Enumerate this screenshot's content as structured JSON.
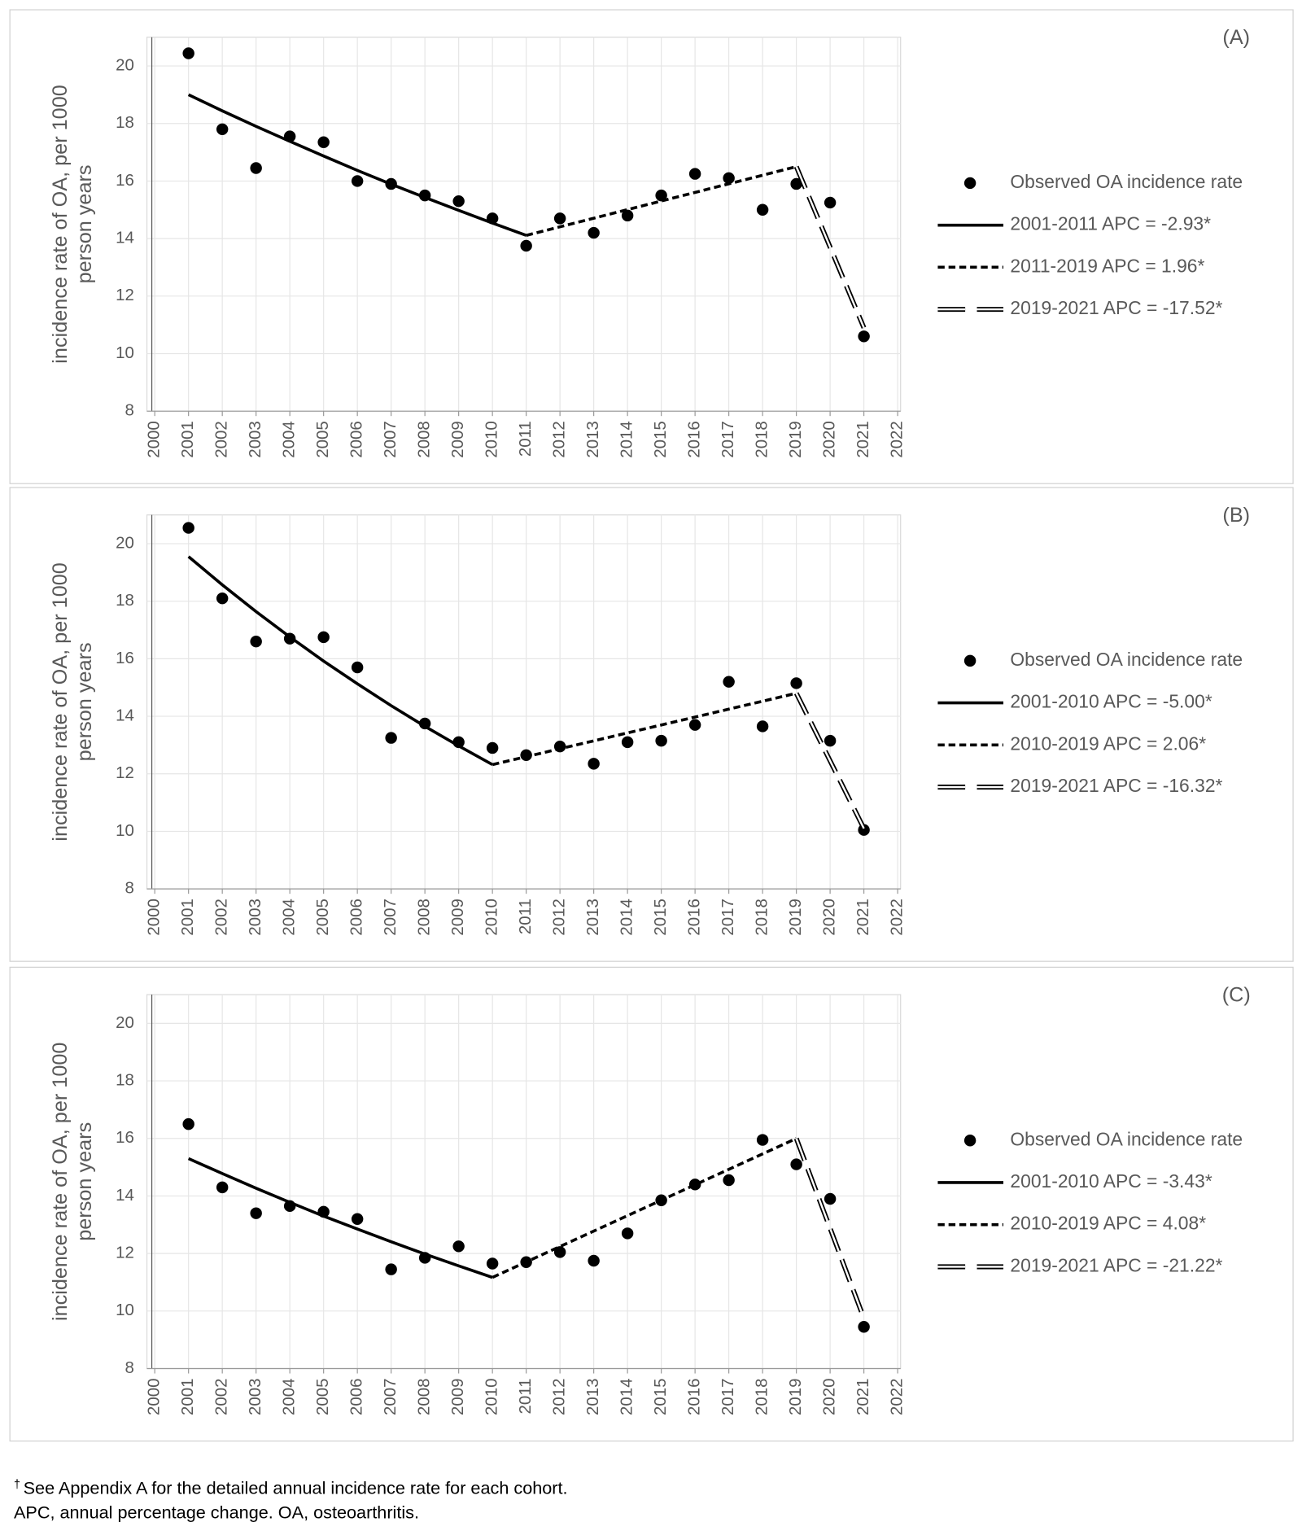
{
  "chart_data": [
    {
      "type": "scatter",
      "panel_label": "(A)",
      "y_label": [
        "incidence rate of OA, per 1000",
        "person years"
      ],
      "xlim": [
        2000,
        2022
      ],
      "xticks": [
        2000,
        2001,
        2002,
        2003,
        2004,
        2005,
        2006,
        2007,
        2008,
        2009,
        2010,
        2011,
        2012,
        2013,
        2014,
        2015,
        2016,
        2017,
        2018,
        2019,
        2020,
        2021,
        2022
      ],
      "ylim": [
        8,
        21
      ],
      "yticks": [
        8,
        10,
        12,
        14,
        16,
        18,
        20
      ],
      "grid": true,
      "series": [
        {
          "name": "Observed OA incidence rate",
          "color": "#000000",
          "style": "points",
          "x": [
            2001,
            2002,
            2003,
            2004,
            2005,
            2006,
            2007,
            2008,
            2009,
            2010,
            2011,
            2012,
            2013,
            2014,
            2015,
            2016,
            2017,
            2018,
            2019,
            2020,
            2021
          ],
          "values": [
            20.44,
            17.8,
            16.45,
            17.55,
            17.35,
            16.0,
            15.9,
            15.5,
            15.3,
            14.7,
            13.75,
            14.7,
            14.2,
            14.8,
            15.5,
            16.25,
            16.1,
            15.0,
            15.9,
            15.25,
            10.6
          ]
        },
        {
          "name": "2001-2011 APC = -2.93*",
          "color": "#000000",
          "style": "solid",
          "x": [
            2001,
            2002,
            2003,
            2004,
            2005,
            2006,
            2007,
            2008,
            2009,
            2010,
            2011
          ],
          "values": [
            19.0,
            18.44,
            17.9,
            17.38,
            16.87,
            16.37,
            15.89,
            15.43,
            14.98,
            14.54,
            14.11
          ]
        },
        {
          "name": "2011-2019 APC = 1.96*",
          "color": "#000000",
          "style": "dotted",
          "x": [
            2011,
            2019
          ],
          "values": [
            14.11,
            16.5
          ]
        },
        {
          "name": "2019-2021 APC = -17.52*",
          "color": "#000000",
          "style": "double-dash",
          "x": [
            2019,
            2021
          ],
          "values": [
            16.5,
            10.9
          ]
        }
      ]
    },
    {
      "type": "scatter",
      "panel_label": "(B)",
      "y_label": [
        "incidence rate of OA, per 1000",
        "person years"
      ],
      "xlim": [
        2000,
        2022
      ],
      "xticks": [
        2000,
        2001,
        2002,
        2003,
        2004,
        2005,
        2006,
        2007,
        2008,
        2009,
        2010,
        2011,
        2012,
        2013,
        2014,
        2015,
        2016,
        2017,
        2018,
        2019,
        2020,
        2021,
        2022
      ],
      "ylim": [
        8,
        21
      ],
      "yticks": [
        8,
        10,
        12,
        14,
        16,
        18,
        20
      ],
      "grid": true,
      "series": [
        {
          "name": "Observed OA incidence rate",
          "color": "#000000",
          "style": "points",
          "x": [
            2001,
            2002,
            2003,
            2004,
            2005,
            2006,
            2007,
            2008,
            2009,
            2010,
            2011,
            2012,
            2013,
            2014,
            2015,
            2016,
            2017,
            2018,
            2019,
            2020,
            2021
          ],
          "values": [
            20.55,
            18.1,
            16.6,
            16.7,
            16.75,
            15.7,
            13.25,
            13.75,
            13.1,
            12.9,
            12.65,
            12.95,
            12.35,
            13.1,
            13.15,
            13.7,
            15.2,
            13.65,
            15.15,
            13.15,
            10.05
          ]
        },
        {
          "name": "2001-2010 APC = -5.00*",
          "color": "#000000",
          "style": "solid",
          "x": [
            2001,
            2002,
            2003,
            2004,
            2005,
            2006,
            2007,
            2008,
            2009,
            2010
          ],
          "values": [
            19.55,
            18.57,
            17.64,
            16.76,
            15.92,
            15.13,
            14.37,
            13.65,
            12.97,
            12.32
          ]
        },
        {
          "name": "2010-2019 APC = 2.06*",
          "color": "#000000",
          "style": "dotted",
          "x": [
            2010,
            2019
          ],
          "values": [
            12.32,
            14.8
          ]
        },
        {
          "name": "2019-2021 APC = -16.32*",
          "color": "#000000",
          "style": "double-dash",
          "x": [
            2019,
            2021
          ],
          "values": [
            14.8,
            10.1
          ]
        }
      ]
    },
    {
      "type": "scatter",
      "panel_label": "(C)",
      "y_label": [
        "incidence rate of OA, per 1000",
        "person years"
      ],
      "xlim": [
        2000,
        2022
      ],
      "xticks": [
        2000,
        2001,
        2002,
        2003,
        2004,
        2005,
        2006,
        2007,
        2008,
        2009,
        2010,
        2011,
        2012,
        2013,
        2014,
        2015,
        2016,
        2017,
        2018,
        2019,
        2020,
        2021,
        2022
      ],
      "ylim": [
        8,
        21
      ],
      "yticks": [
        8,
        10,
        12,
        14,
        16,
        18,
        20
      ],
      "grid": true,
      "series": [
        {
          "name": "Observed OA incidence rate",
          "color": "#000000",
          "style": "points",
          "x": [
            2001,
            2002,
            2003,
            2004,
            2005,
            2006,
            2007,
            2008,
            2009,
            2010,
            2011,
            2012,
            2013,
            2014,
            2015,
            2016,
            2017,
            2018,
            2019,
            2020,
            2021
          ],
          "values": [
            16.5,
            14.3,
            13.4,
            13.65,
            13.45,
            13.2,
            11.45,
            11.85,
            12.25,
            11.65,
            11.7,
            12.05,
            11.75,
            12.7,
            13.85,
            14.4,
            14.55,
            15.95,
            15.1,
            13.9,
            9.45
          ]
        },
        {
          "name": "2001-2010 APC = -3.43*",
          "color": "#000000",
          "style": "solid",
          "x": [
            2001,
            2002,
            2003,
            2004,
            2005,
            2006,
            2007,
            2008,
            2009,
            2010
          ],
          "values": [
            15.3,
            14.78,
            14.27,
            13.78,
            13.3,
            12.85,
            12.41,
            11.98,
            11.57,
            11.17
          ]
        },
        {
          "name": "2010-2019 APC = 4.08*",
          "color": "#000000",
          "style": "dotted",
          "x": [
            2010,
            2019
          ],
          "values": [
            11.17,
            16.0
          ]
        },
        {
          "name": "2019-2021 APC = -21.22*",
          "color": "#000000",
          "style": "double-dash",
          "x": [
            2019,
            2021
          ],
          "values": [
            16.0,
            9.75
          ]
        }
      ]
    }
  ],
  "footnotes": {
    "dagger": "†",
    "lines": [
      "See Appendix A for the detailed annual incidence rate for each cohort.",
      "APC, annual percentage change. OA, osteoarthritis."
    ]
  }
}
